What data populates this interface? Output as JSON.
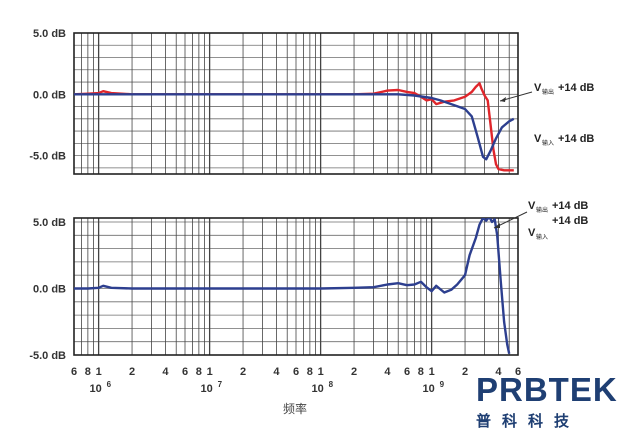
{
  "chart_data": [
    {
      "type": "line",
      "xscale": "log",
      "xlim": [
        600000,
        6000000000
      ],
      "ylim": [
        -6.5,
        5
      ],
      "ytick_labels": [
        "5.0 dB",
        "0.0 dB",
        "-5.0 dB"
      ],
      "ytick_values": [
        5,
        0,
        -5
      ],
      "grid": true,
      "annotations": [
        {
          "main": "V",
          "sub": "输出",
          "suffix": "+14 dB"
        },
        {
          "main": "V",
          "sub": "输入",
          "suffix": "+14 dB"
        }
      ],
      "series": [
        {
          "color": "#e0262b",
          "x": [
            600000,
            800000,
            1000000,
            1100000,
            1300000,
            2000000,
            5000000,
            10000000,
            50000000,
            200000000,
            300000000,
            400000000,
            500000000,
            600000000,
            700000000,
            800000000,
            900000000,
            1000000000,
            1100000000,
            1300000000,
            1600000000,
            2000000000,
            2300000000,
            2500000000,
            2700000000,
            2800000000,
            3000000000,
            3200000000,
            3400000000,
            3600000000,
            3800000000,
            4000000000,
            4500000000,
            5000000000,
            5500000000
          ],
          "y": [
            0,
            0.05,
            0.1,
            0.25,
            0.1,
            0,
            0,
            0,
            0,
            0,
            0.05,
            0.3,
            0.35,
            0.2,
            0.1,
            -0.2,
            -0.5,
            -0.4,
            -0.8,
            -0.6,
            -0.5,
            -0.2,
            0.2,
            0.6,
            0.9,
            0.5,
            -0.1,
            -0.5,
            -2.5,
            -4.5,
            -5.7,
            -6.1,
            -6.2,
            -6.2,
            -6.2
          ]
        },
        {
          "color": "#2d3f8f",
          "x": [
            600000,
            1000000,
            10000000,
            100000000,
            300000000,
            500000000,
            700000000,
            1000000000,
            1200000000,
            1500000000,
            2000000000,
            2300000000,
            2600000000,
            2900000000,
            3100000000,
            3400000000,
            3800000000,
            4300000000,
            5000000000,
            5500000000
          ],
          "y": [
            0,
            0,
            0,
            0,
            0,
            0,
            -0.1,
            -0.3,
            -0.5,
            -0.8,
            -1.2,
            -1.8,
            -3.5,
            -5.1,
            -5.3,
            -4.6,
            -3.6,
            -2.7,
            -2.2,
            -2.0
          ]
        }
      ]
    },
    {
      "type": "line",
      "xscale": "log",
      "xlim": [
        600000,
        6000000000
      ],
      "ylim": [
        -5,
        5.3
      ],
      "ytick_labels": [
        "5.0 dB",
        "0.0 dB",
        "-5.0 dB"
      ],
      "ytick_values": [
        5,
        0,
        -5
      ],
      "grid": true,
      "annotations": [
        {
          "main": "V",
          "sub": "输出",
          "suffix": "+14 dB"
        },
        {
          "main": "V",
          "sub": "输入",
          "suffix": ""
        }
      ],
      "series": [
        {
          "color": "#2d3f8f",
          "x": [
            600000,
            800000,
            1000000,
            1100000,
            1300000,
            2000000,
            10000000,
            100000000,
            200000000,
            300000000,
            400000000,
            500000000,
            600000000,
            700000000,
            800000000,
            900000000,
            1000000000,
            1100000000,
            1300000000,
            1500000000,
            1700000000,
            2000000000,
            2200000000,
            2500000000,
            2700000000,
            2900000000,
            3100000000,
            3300000000,
            3500000000,
            3700000000,
            3900000000,
            4200000000,
            4500000000,
            4800000000,
            5000000000
          ],
          "y": [
            0,
            0,
            0.05,
            0.2,
            0.05,
            0,
            0,
            0,
            0.05,
            0.1,
            0.3,
            0.4,
            0.25,
            0.3,
            0.5,
            0.1,
            -0.2,
            0.2,
            -0.3,
            -0.1,
            0.3,
            1.0,
            2.5,
            3.8,
            4.8,
            5.3,
            5.1,
            5.4,
            5.0,
            5.2,
            4.0,
            0.5,
            -2.5,
            -4.2,
            -4.9
          ]
        }
      ]
    }
  ],
  "x_axis": {
    "tick_labels": [
      {
        "f": 600000,
        "label": "6"
      },
      {
        "f": 800000,
        "label": "8"
      },
      {
        "f": 1000000,
        "label": "1"
      },
      {
        "f": 2000000,
        "label": "2"
      },
      {
        "f": 4000000,
        "label": "4"
      },
      {
        "f": 6000000,
        "label": "6"
      },
      {
        "f": 8000000,
        "label": "8"
      },
      {
        "f": 10000000,
        "label": "1"
      },
      {
        "f": 20000000,
        "label": "2"
      },
      {
        "f": 40000000,
        "label": "4"
      },
      {
        "f": 60000000,
        "label": "6"
      },
      {
        "f": 80000000,
        "label": "8"
      },
      {
        "f": 100000000,
        "label": "1"
      },
      {
        "f": 200000000,
        "label": "2"
      },
      {
        "f": 400000000,
        "label": "4"
      },
      {
        "f": 600000000,
        "label": "6"
      },
      {
        "f": 800000000,
        "label": "8"
      },
      {
        "f": 1000000000,
        "label": "1"
      },
      {
        "f": 2000000000,
        "label": "2"
      },
      {
        "f": 4000000000,
        "label": "4"
      },
      {
        "f": 6000000000,
        "label": "6"
      }
    ],
    "decades": [
      {
        "f": 1000000,
        "base": "10",
        "exp": "6"
      },
      {
        "f": 10000000,
        "base": "10",
        "exp": "7"
      },
      {
        "f": 100000000,
        "base": "10",
        "exp": "8"
      },
      {
        "f": 1000000000,
        "base": "10",
        "exp": "9"
      }
    ],
    "label": "频率"
  },
  "logo": {
    "name": "PRBTEK",
    "subtitle": "普科科技",
    "color": "#1f3f73"
  }
}
